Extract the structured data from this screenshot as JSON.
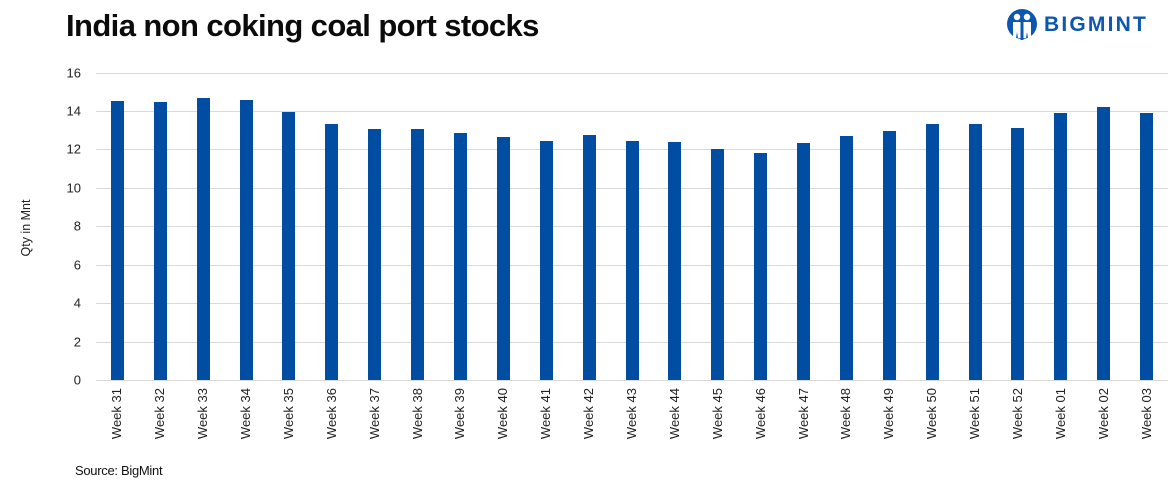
{
  "header": {
    "title": "India non coking coal port stocks",
    "brand": "BIGMINT"
  },
  "footer": {
    "source": "Source: BigMint"
  },
  "colors": {
    "bar": "#004DA1",
    "brand": "#0D57B0",
    "grid": "#D9D9D9"
  },
  "chart_data": {
    "type": "bar",
    "title": "India non coking coal port stocks",
    "xlabel": "",
    "ylabel": "Qty in Mnt",
    "ylim": [
      0,
      16
    ],
    "yticks": [
      0,
      2,
      4,
      6,
      8,
      10,
      12,
      14,
      16
    ],
    "grid": true,
    "legend": "none",
    "source": "Source: BigMint",
    "categories": [
      "Week 31",
      "Week 32",
      "Week 33",
      "Week 34",
      "Week 35",
      "Week 36",
      "Week 37",
      "Week 38",
      "Week 39",
      "Week 40",
      "Week 41",
      "Week 42",
      "Week 43",
      "Week 44",
      "Week 45",
      "Week 46",
      "Week 47",
      "Week 48",
      "Week 49",
      "Week 50",
      "Week 51",
      "Week 52",
      "Week 01",
      "Week 02",
      "Week 03"
    ],
    "values": [
      14.5,
      14.45,
      14.65,
      14.55,
      13.95,
      13.3,
      13.05,
      13.05,
      12.85,
      12.65,
      12.45,
      12.75,
      12.45,
      12.4,
      12.0,
      11.8,
      12.35,
      12.7,
      12.95,
      13.3,
      13.3,
      13.1,
      13.9,
      14.2,
      13.9
    ]
  }
}
